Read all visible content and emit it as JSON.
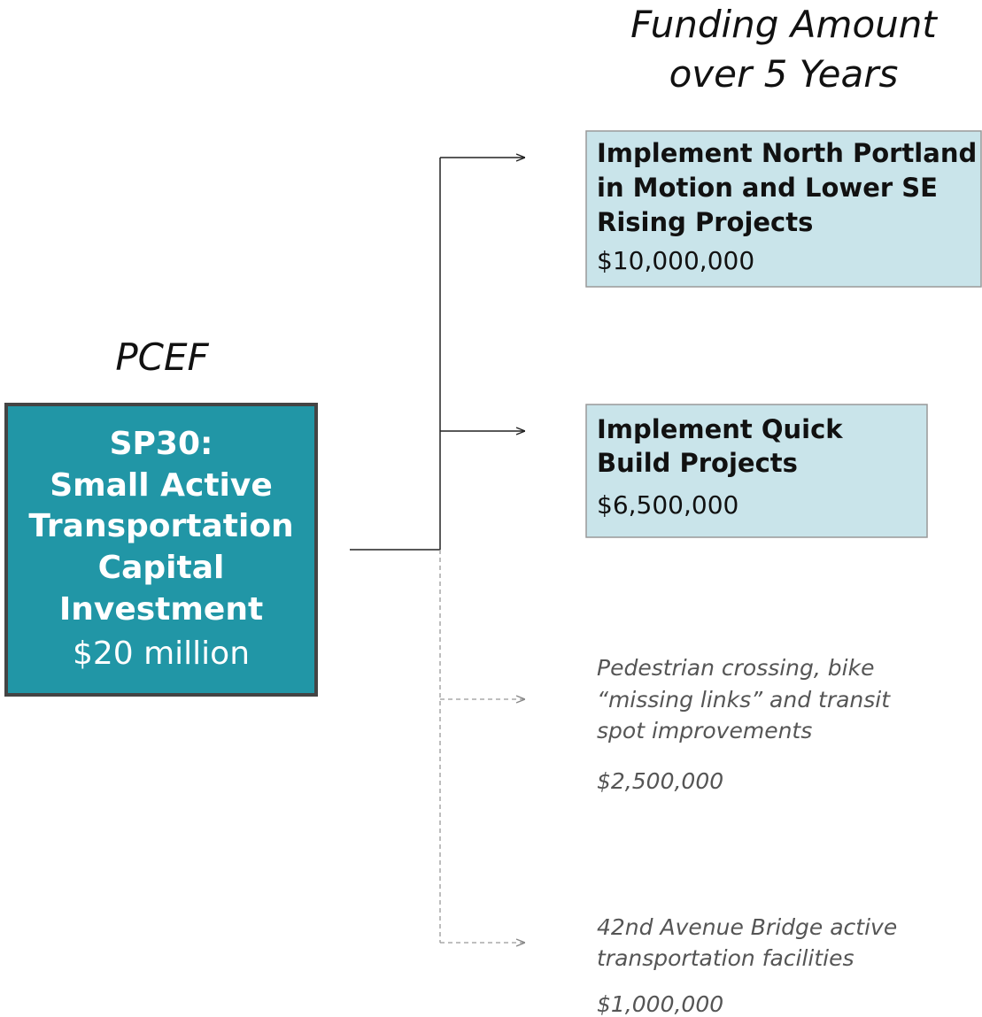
{
  "header": {
    "title_lines": [
      "Funding Amount",
      "over 5 Years"
    ]
  },
  "source": {
    "label": "PCEF",
    "title_lines": [
      "SP30:",
      "Small Active",
      "Transportation",
      "Capital",
      "Investment"
    ],
    "amount": "$20 million"
  },
  "nodes": [
    {
      "title_lines": [
        "Implement North Portland",
        "in Motion and Lower SE",
        "Rising Projects"
      ],
      "amount": "$10,000,000"
    },
    {
      "title_lines": [
        "Implement Quick",
        "Build Projects"
      ],
      "amount": "$6,500,000"
    },
    {
      "title_lines": [
        "Pedestrian crossing, bike",
        "“missing links” and transit",
        "spot improvements"
      ],
      "amount": "$2,500,000"
    },
    {
      "title_lines": [
        "42nd Avenue Bridge active",
        "transportation facilities"
      ],
      "amount": "$1,000,000"
    }
  ]
}
